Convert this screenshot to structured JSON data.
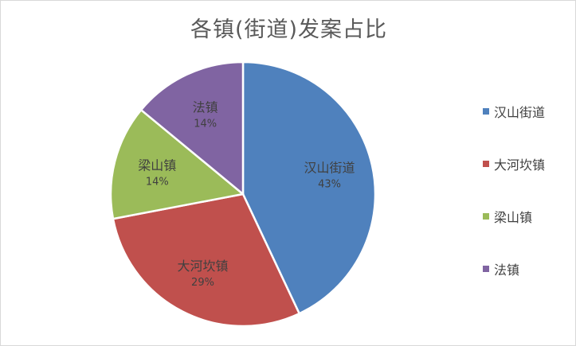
{
  "chart_data": {
    "type": "pie",
    "title": "各镇(街道)发案占比",
    "categories": [
      "汉山街道",
      "大河坎镇",
      "梁山镇",
      "法镇"
    ],
    "values": [
      43,
      29,
      14,
      14
    ],
    "value_labels": [
      "43%",
      "29%",
      "14%",
      "14%"
    ],
    "colors": [
      "#4f81bd",
      "#c0504d",
      "#9bbb59",
      "#8064a2"
    ],
    "legend_position": "right",
    "data_labels": "inside"
  }
}
